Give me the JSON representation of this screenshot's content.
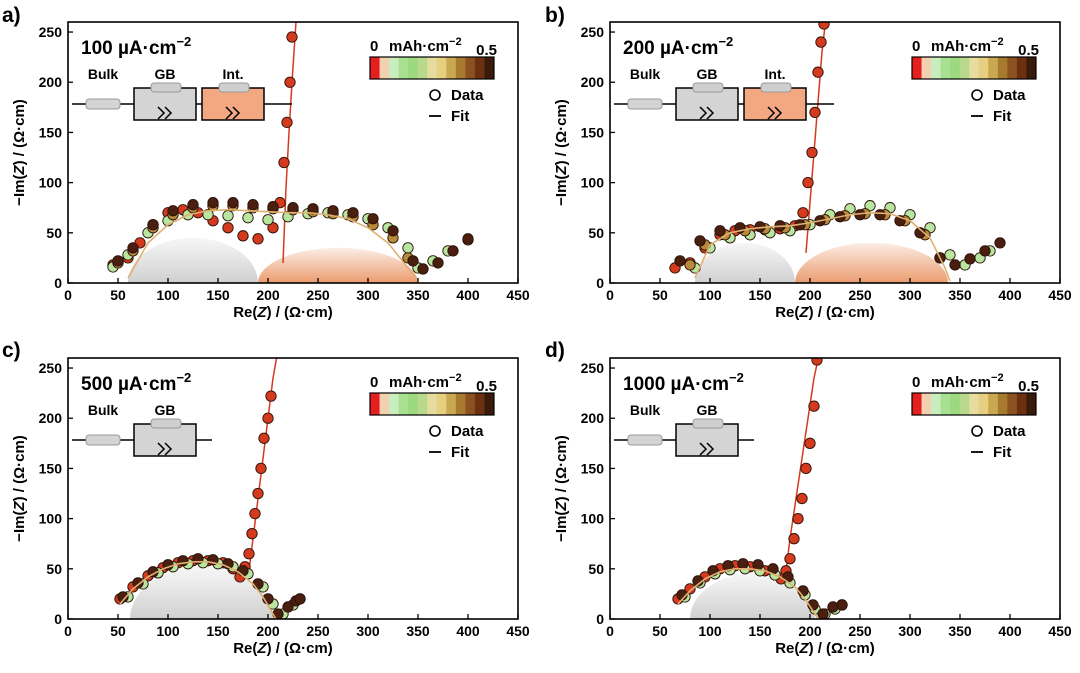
{
  "colors": {
    "gb_region": "#c8c8c8",
    "int_region": "#e88a55",
    "fit_line": "#e0b070",
    "red_series": "#d43a1e",
    "dark_series": "#4a1f10",
    "green_series": "#b8e6a0",
    "gold_series": "#b88a3a",
    "gb_box": "#d4d4d4",
    "int_box": "#f4a882",
    "colorbar_stops": [
      "#e51e1e",
      "#f2d0b0",
      "#c8eec0",
      "#a8e090",
      "#9cd880",
      "#b8d98a",
      "#e6dca0",
      "#e6d080",
      "#c8a850",
      "#a87a30",
      "#8a5220",
      "#6a3010",
      "#3a1a08"
    ]
  },
  "chart_data": [
    {
      "panel_label": "a)",
      "type": "scatter",
      "current_density": "100 µA·cm",
      "current_exp": "−2",
      "xlabel": {
        "pre": "Re(",
        "var": "Z",
        "post": ") / (Ω·cm)"
      },
      "ylabel": {
        "pre": "−Im(",
        "var": "Z",
        "post": ") / (Ω·cm)"
      },
      "xlim": [
        0,
        450
      ],
      "ylim": [
        0,
        260
      ],
      "xticks": [
        0,
        50,
        100,
        150,
        200,
        250,
        300,
        350,
        400,
        450
      ],
      "yticks": [
        0,
        50,
        100,
        150,
        200,
        250
      ],
      "colorbar": {
        "min_label": "0",
        "unit": "mAh·cm",
        "unit_exp": "−2",
        "max_label": "0.5"
      },
      "legend": [
        "Data",
        "Fit"
      ],
      "circuit": [
        "Bulk",
        "GB",
        "Int."
      ],
      "regions": [
        {
          "kind": "GB",
          "x0": 60,
          "x1": 190,
          "h": 45
        },
        {
          "kind": "Int",
          "x0": 190,
          "x1": 350,
          "h": 35
        }
      ],
      "fit_arc": {
        "x": [
          60,
          80,
          100,
          120,
          140,
          160,
          180,
          200,
          220,
          240,
          260,
          280,
          300,
          320,
          340,
          350
        ],
        "y": [
          5,
          40,
          58,
          68,
          72,
          73,
          72,
          71,
          70,
          70,
          68,
          64,
          55,
          40,
          15,
          2
        ]
      },
      "spike": {
        "x": [
          215,
          218,
          221,
          224,
          228
        ],
        "y": [
          20,
          95,
          150,
          200,
          260
        ]
      },
      "series": [
        {
          "color": "#d43a1e",
          "x": [
            45,
            60,
            72,
            85,
            100,
            115,
            130,
            145,
            160,
            175,
            190,
            205,
            212,
            216,
            219,
            222,
            224
          ],
          "y": [
            18,
            25,
            40,
            58,
            70,
            73,
            70,
            62,
            55,
            47,
            44,
            55,
            80,
            120,
            160,
            200,
            245
          ]
        },
        {
          "color": "#b8e6a0",
          "x": [
            45,
            60,
            80,
            100,
            120,
            140,
            160,
            180,
            200,
            220,
            240,
            260,
            280,
            300,
            320,
            340,
            350,
            365,
            380,
            400
          ],
          "y": [
            16,
            28,
            50,
            62,
            68,
            68,
            67,
            65,
            63,
            66,
            69,
            70,
            68,
            64,
            55,
            35,
            15,
            22,
            32,
            43
          ]
        },
        {
          "color": "#b88a3a",
          "x": [
            50,
            65,
            85,
            105,
            125,
            145,
            165,
            185,
            205,
            225,
            245,
            265,
            285,
            305,
            325,
            340
          ],
          "y": [
            20,
            32,
            55,
            68,
            75,
            77,
            77,
            75,
            74,
            73,
            71,
            69,
            66,
            58,
            45,
            25
          ]
        },
        {
          "color": "#4a1f10",
          "x": [
            50,
            65,
            85,
            105,
            125,
            145,
            165,
            185,
            205,
            225,
            245,
            265,
            285,
            305,
            325,
            345,
            355,
            370,
            385,
            400
          ],
          "y": [
            22,
            35,
            58,
            72,
            78,
            80,
            80,
            78,
            76,
            75,
            74,
            72,
            70,
            64,
            52,
            22,
            14,
            20,
            32,
            44
          ]
        }
      ]
    },
    {
      "panel_label": "b)",
      "type": "scatter",
      "current_density": "200 µA·cm",
      "current_exp": "−2",
      "xlabel": {
        "pre": "Re(",
        "var": "Z",
        "post": ") / (Ω·cm)"
      },
      "ylabel": {
        "pre": "−Im(",
        "var": "Z",
        "post": ") / (Ω·cm)"
      },
      "xlim": [
        0,
        450
      ],
      "ylim": [
        0,
        260
      ],
      "xticks": [
        0,
        50,
        100,
        150,
        200,
        250,
        300,
        350,
        400,
        450
      ],
      "yticks": [
        0,
        50,
        100,
        150,
        200,
        250
      ],
      "colorbar": {
        "min_label": "0",
        "unit": "mAh·cm",
        "unit_exp": "−2",
        "max_label": "0.5"
      },
      "legend": [
        "Data",
        "Fit"
      ],
      "circuit": [
        "Bulk",
        "GB",
        "Int."
      ],
      "regions": [
        {
          "kind": "GB",
          "x0": 85,
          "x1": 185,
          "h": 40
        },
        {
          "kind": "Int",
          "x0": 185,
          "x1": 338,
          "h": 40
        }
      ],
      "fit_arc": {
        "x": [
          85,
          100,
          120,
          140,
          160,
          180,
          200,
          220,
          240,
          260,
          280,
          300,
          320,
          335,
          340
        ],
        "y": [
          5,
          38,
          50,
          54,
          56,
          57,
          60,
          64,
          68,
          70,
          69,
          62,
          45,
          15,
          2
        ]
      },
      "spike": {
        "x": [
          196,
          200,
          204,
          208,
          212,
          216
        ],
        "y": [
          30,
          80,
          130,
          180,
          230,
          265
        ]
      },
      "series": [
        {
          "color": "#d43a1e",
          "x": [
            65,
            80,
            95,
            110,
            125,
            140,
            155,
            170,
            185,
            193,
            198,
            202,
            205,
            208,
            211,
            214
          ],
          "y": [
            15,
            20,
            35,
            48,
            52,
            53,
            53,
            54,
            57,
            70,
            100,
            130,
            170,
            210,
            240,
            258
          ]
        },
        {
          "color": "#b8e6a0",
          "x": [
            85,
            100,
            120,
            140,
            160,
            180,
            200,
            220,
            240,
            260,
            280,
            300,
            320,
            340,
            355,
            370,
            380
          ],
          "y": [
            15,
            35,
            45,
            48,
            50,
            52,
            58,
            68,
            74,
            77,
            75,
            68,
            55,
            28,
            18,
            25,
            32
          ]
        },
        {
          "color": "#b88a3a",
          "x": [
            80,
            95,
            115,
            135,
            155,
            175,
            195,
            215,
            235,
            255,
            275,
            295,
            315,
            330
          ],
          "y": [
            18,
            38,
            48,
            52,
            54,
            55,
            58,
            63,
            67,
            69,
            68,
            62,
            48,
            25
          ]
        },
        {
          "color": "#4a1f10",
          "x": [
            70,
            90,
            110,
            130,
            150,
            170,
            190,
            210,
            230,
            250,
            270,
            290,
            310,
            330,
            345,
            360,
            375,
            390
          ],
          "y": [
            22,
            42,
            52,
            55,
            56,
            57,
            58,
            62,
            66,
            68,
            68,
            62,
            50,
            25,
            18,
            24,
            32,
            40
          ]
        }
      ]
    },
    {
      "panel_label": "c)",
      "type": "scatter",
      "current_density": "500 µA·cm",
      "current_exp": "−2",
      "xlabel": {
        "pre": "Re(",
        "var": "Z",
        "post": ") / (Ω·cm)"
      },
      "ylabel": {
        "pre": "−Im(",
        "var": "Z",
        "post": ") / (Ω·cm)"
      },
      "xlim": [
        0,
        450
      ],
      "ylim": [
        0,
        260
      ],
      "xticks": [
        0,
        50,
        100,
        150,
        200,
        250,
        300,
        350,
        400,
        450
      ],
      "yticks": [
        0,
        50,
        100,
        150,
        200,
        250
      ],
      "colorbar": {
        "min_label": "0",
        "unit": "mAh·cm",
        "unit_exp": "−2",
        "max_label": "0.5"
      },
      "legend": [
        "Data",
        "Fit"
      ],
      "circuit": [
        "Bulk",
        "GB"
      ],
      "regions": [
        {
          "kind": "GB",
          "x0": 62,
          "x1": 205,
          "h": 52
        }
      ],
      "fit_arc": {
        "x": [
          52,
          65,
          80,
          95,
          110,
          125,
          140,
          155,
          170,
          185,
          195,
          205,
          208
        ],
        "y": [
          15,
          30,
          42,
          50,
          55,
          57,
          57,
          54,
          47,
          35,
          22,
          5,
          0
        ]
      },
      "spike": {
        "x": [
          180,
          185,
          190,
          195,
          200,
          205,
          210
        ],
        "y": [
          40,
          80,
          120,
          160,
          200,
          240,
          268
        ]
      },
      "series": [
        {
          "color": "#d43a1e",
          "x": [
            52,
            65,
            80,
            95,
            110,
            125,
            140,
            155,
            165,
            172,
            177,
            181,
            184,
            187,
            190,
            193,
            196,
            200,
            203
          ],
          "y": [
            20,
            32,
            43,
            51,
            56,
            58,
            58,
            56,
            50,
            42,
            52,
            65,
            85,
            105,
            125,
            150,
            180,
            200,
            222
          ]
        },
        {
          "color": "#b8e6a0",
          "x": [
            60,
            75,
            90,
            105,
            120,
            135,
            150,
            165,
            180,
            195,
            205,
            215,
            225,
            232
          ],
          "y": [
            22,
            35,
            46,
            52,
            55,
            56,
            55,
            52,
            45,
            32,
            15,
            5,
            14,
            20
          ]
        },
        {
          "color": "#4a1f10",
          "x": [
            55,
            70,
            85,
            100,
            115,
            130,
            145,
            160,
            175,
            190,
            200,
            210,
            220,
            228,
            232
          ],
          "y": [
            22,
            36,
            47,
            54,
            58,
            60,
            59,
            55,
            48,
            35,
            20,
            5,
            12,
            18,
            20
          ]
        }
      ]
    },
    {
      "panel_label": "d)",
      "type": "scatter",
      "current_density": "1000 µA·cm",
      "current_exp": "−2",
      "xlabel": {
        "pre": "Re(",
        "var": "Z",
        "post": ") / (Ω·cm)"
      },
      "ylabel": {
        "pre": "−Im(",
        "var": "Z",
        "post": ") / (Ω·cm)"
      },
      "xlim": [
        0,
        450
      ],
      "ylim": [
        0,
        260
      ],
      "xticks": [
        0,
        50,
        100,
        150,
        200,
        250,
        300,
        350,
        400,
        450
      ],
      "yticks": [
        0,
        50,
        100,
        150,
        200,
        250
      ],
      "colorbar": {
        "min_label": "0",
        "unit": "mAh·cm",
        "unit_exp": "−2",
        "max_label": "0.5"
      },
      "legend": [
        "Data",
        "Fit"
      ],
      "circuit": [
        "Bulk",
        "GB"
      ],
      "regions": [
        {
          "kind": "GB",
          "x0": 80,
          "x1": 205,
          "h": 45
        }
      ],
      "fit_arc": {
        "x": [
          68,
          80,
          95,
          110,
          125,
          140,
          155,
          170,
          185,
          195,
          205,
          208
        ],
        "y": [
          15,
          28,
          40,
          47,
          50,
          50,
          48,
          42,
          32,
          20,
          5,
          0
        ]
      },
      "spike": {
        "x": [
          175,
          180,
          186,
          192,
          198,
          204,
          210
        ],
        "y": [
          40,
          80,
          120,
          160,
          200,
          240,
          268
        ]
      },
      "series": [
        {
          "color": "#d43a1e",
          "x": [
            68,
            80,
            95,
            110,
            125,
            140,
            155,
            165,
            171,
            176,
            180,
            184,
            188,
            192,
            196,
            200,
            204,
            207
          ],
          "y": [
            20,
            30,
            42,
            50,
            53,
            52,
            48,
            44,
            40,
            48,
            60,
            80,
            100,
            120,
            150,
            175,
            212,
            258
          ]
        },
        {
          "color": "#b8e6a0",
          "x": [
            75,
            90,
            105,
            120,
            135,
            150,
            165,
            180,
            195,
            205,
            215,
            225,
            232
          ],
          "y": [
            22,
            36,
            45,
            49,
            50,
            48,
            44,
            36,
            24,
            10,
            5,
            10,
            14
          ]
        },
        {
          "color": "#4a1f10",
          "x": [
            72,
            88,
            103,
            118,
            133,
            148,
            163,
            178,
            193,
            203,
            213,
            223,
            232
          ],
          "y": [
            24,
            38,
            48,
            53,
            55,
            54,
            50,
            42,
            28,
            14,
            5,
            12,
            14
          ]
        }
      ]
    }
  ]
}
